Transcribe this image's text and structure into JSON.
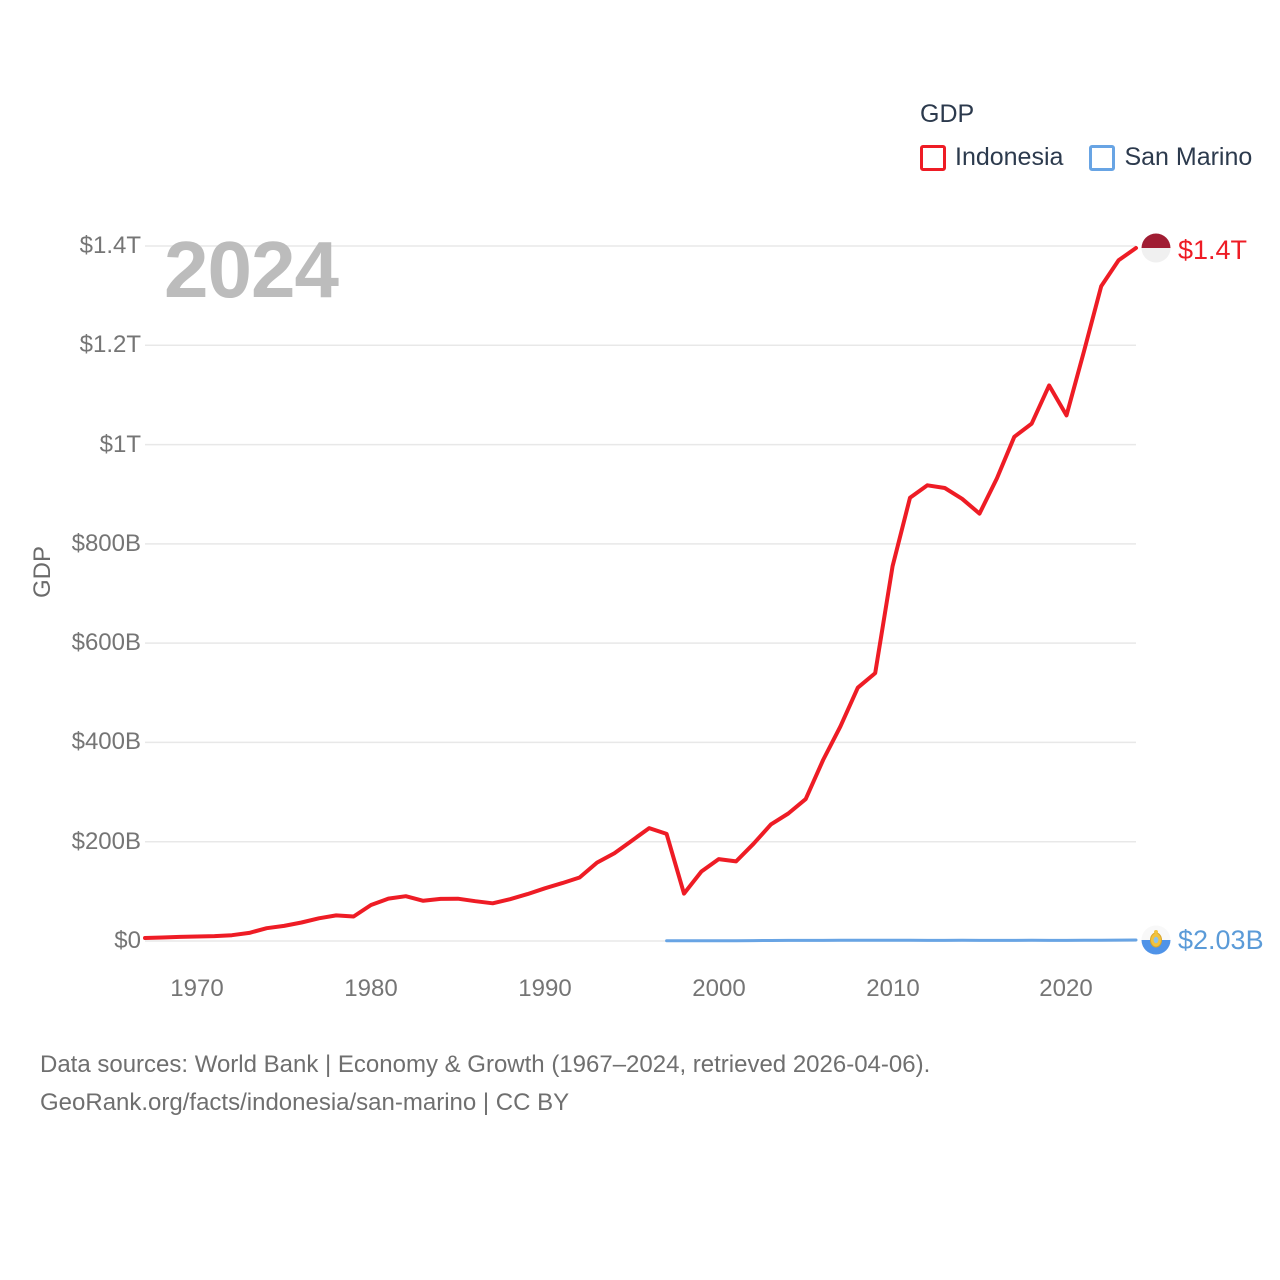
{
  "watermark": "2024",
  "legend": {
    "title": "GDP",
    "items": [
      {
        "label": "Indonesia",
        "color": "#ee1c25"
      },
      {
        "label": "San Marino",
        "color": "#68a4e4"
      }
    ]
  },
  "end_labels": {
    "indonesia": "$1.4T",
    "san_marino": "$2.03B"
  },
  "footer": {
    "line1": "Data sources: World Bank | Economy & Growth (1967–2024, retrieved 2026-04-06).",
    "line2": "GeoRank.org/facts/indonesia/san-marino | CC BY"
  },
  "icons": {
    "indonesia_marker": "indonesia-flag-icon",
    "san_marino_marker": "san-marino-flag-icon"
  },
  "colors": {
    "indonesia_line": "#ee1c25",
    "san_marino_line": "#68a4e4",
    "indonesia_label": "#ee1c25",
    "san_marino_label": "#5b9bd8",
    "grid": "#e8e8e8",
    "legend_text": "#2c3a4d",
    "tick_text": "#757575",
    "watermark_text": "#bcbcbc",
    "indonesia_flag_red": "#a01d33",
    "indonesia_flag_white": "#f0f0f0",
    "san_marino_flag_white": "#f8f8f8",
    "san_marino_flag_blue": "#4f93e8",
    "san_marino_emblem_yellow": "#f2c23c"
  },
  "chart_data": {
    "type": "line",
    "title": "GDP",
    "xlabel": "",
    "ylabel": "GDP",
    "x_range": [
      1967,
      2024
    ],
    "ylim_billions": [
      0,
      1400
    ],
    "grid": true,
    "legend_position": "top-right",
    "y_ticks": [
      {
        "value": 0,
        "label": "$0"
      },
      {
        "value": 200,
        "label": "$200B"
      },
      {
        "value": 400,
        "label": "$400B"
      },
      {
        "value": 600,
        "label": "$600B"
      },
      {
        "value": 800,
        "label": "$800B"
      },
      {
        "value": 1000,
        "label": "$1T"
      },
      {
        "value": 1200,
        "label": "$1.2T"
      },
      {
        "value": 1400,
        "label": "$1.4T"
      }
    ],
    "x_ticks": [
      1970,
      1980,
      1990,
      2000,
      2010,
      2020
    ],
    "unit": "billion USD (current)",
    "series": [
      {
        "name": "Indonesia",
        "color": "#ee1c25",
        "stroke_width": 4,
        "start_year": 1967,
        "end_value_label": "$1.4T",
        "values": [
          5.98,
          7.08,
          8.34,
          9.15,
          9.9,
          11.6,
          16.3,
          25.8,
          30.5,
          37.3,
          45.8,
          51.5,
          49.4,
          72.5,
          85.5,
          90.2,
          81.0,
          84.9,
          85.3,
          80.1,
          75.9,
          84.3,
          94.5,
          106.1,
          116.6,
          128.0,
          158.0,
          176.9,
          202.1,
          227.4,
          215.7,
          95.4,
          140.0,
          165.0,
          160.4,
          195.7,
          234.8,
          256.8,
          285.9,
          364.6,
          432.2,
          510.2,
          539.6,
          755.1,
          893.0,
          917.9,
          912.5,
          890.8,
          860.9,
          931.9,
          1015.6,
          1042.3,
          1119.1,
          1058.7,
          1186.5,
          1319.1,
          1371.2,
          1396.0
        ]
      },
      {
        "name": "San Marino",
        "color": "#68a4e4",
        "stroke_width": 3,
        "start_year": 1997,
        "end_value_label": "$2.03B",
        "values": [
          0.56,
          0.61,
          0.63,
          0.62,
          0.68,
          0.78,
          0.98,
          1.14,
          1.22,
          1.29,
          1.49,
          1.64,
          1.52,
          1.42,
          1.45,
          1.28,
          1.3,
          1.33,
          1.15,
          1.18,
          1.25,
          1.34,
          1.3,
          1.25,
          1.54,
          1.65,
          1.85,
          2.03
        ]
      }
    ]
  }
}
